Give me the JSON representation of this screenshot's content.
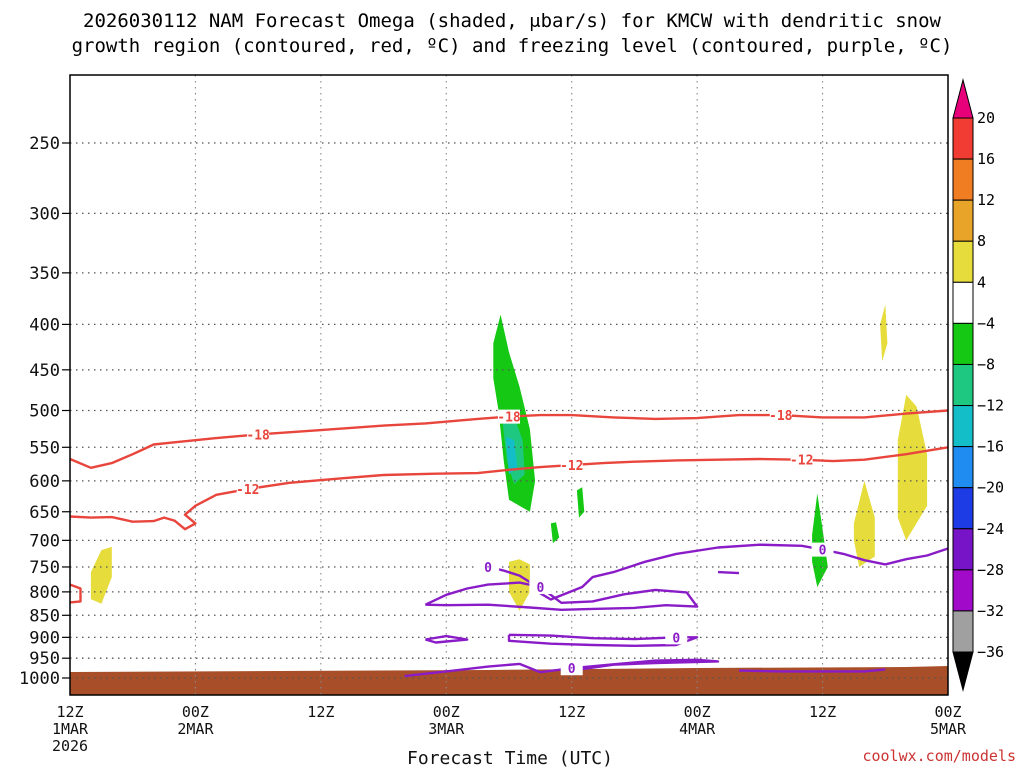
{
  "chart_data": {
    "type": "heatmap",
    "title_lines": [
      "2026030112 NAM Forecast Omega (shaded, μbar/s) for KMCW with dendritic snow",
      "growth region (contoured, red, ºC) and freezing level (contoured, purple, ºC)"
    ],
    "xlabel": "Forecast Time (UTC)",
    "ylabel": "",
    "x_ticks": [
      {
        "hour": 0,
        "lines": [
          "12Z",
          "1MAR",
          "2026"
        ]
      },
      {
        "hour": 12,
        "lines": [
          "00Z",
          "2MAR"
        ]
      },
      {
        "hour": 24,
        "lines": [
          "12Z"
        ]
      },
      {
        "hour": 36,
        "lines": [
          "00Z",
          "3MAR"
        ]
      },
      {
        "hour": 48,
        "lines": [
          "12Z"
        ]
      },
      {
        "hour": 60,
        "lines": [
          "00Z",
          "4MAR"
        ]
      },
      {
        "hour": 72,
        "lines": [
          "12Z"
        ]
      },
      {
        "hour": 84,
        "lines": [
          "00Z",
          "5MAR"
        ]
      }
    ],
    "x_range_hours": [
      0,
      84
    ],
    "y_ticks_hpa": [
      250,
      300,
      350,
      400,
      450,
      500,
      550,
      600,
      650,
      700,
      750,
      800,
      850,
      900,
      950,
      1000
    ],
    "y_range_hpa": [
      200,
      1050
    ],
    "grid": true,
    "colorbar": {
      "labels": [
        "20",
        "16",
        "12",
        "8",
        "4",
        "−4",
        "−8",
        "−12",
        "−16",
        "−20",
        "−24",
        "−28",
        "−32",
        "−36"
      ],
      "colors": [
        "#e8007a",
        "#f03c32",
        "#f07d22",
        "#e8a428",
        "#e6dc3c",
        "#ffffff",
        "#14c814",
        "#1ec880",
        "#14bec8",
        "#1e8cf0",
        "#1e3ce6",
        "#7814c8",
        "#a00ac8",
        "#a0a0a0",
        "#000000"
      ]
    },
    "red_contours": [
      {
        "label": "-18",
        "points": [
          [
            0,
            567
          ],
          [
            2,
            580
          ],
          [
            4,
            573
          ],
          [
            6,
            560
          ],
          [
            7,
            553
          ],
          [
            8,
            546
          ],
          [
            10,
            543
          ],
          [
            14,
            537
          ],
          [
            18,
            532
          ],
          [
            24,
            526
          ],
          [
            30,
            520
          ],
          [
            34,
            517
          ],
          [
            39,
            511
          ],
          [
            42,
            508
          ],
          [
            45,
            506
          ],
          [
            48,
            506
          ],
          [
            52,
            509
          ],
          [
            56,
            511
          ],
          [
            60,
            510
          ],
          [
            64,
            506
          ],
          [
            68,
            506
          ],
          [
            72,
            509
          ],
          [
            76,
            509
          ],
          [
            80,
            504
          ],
          [
            84,
            500
          ]
        ]
      },
      {
        "label": "-12",
        "points": [
          [
            0,
            658
          ],
          [
            2,
            660
          ],
          [
            4,
            659
          ],
          [
            6,
            667
          ],
          [
            8,
            666
          ],
          [
            9,
            660
          ],
          [
            10,
            665
          ],
          [
            11,
            680
          ],
          [
            12,
            670
          ],
          [
            11,
            655
          ],
          [
            12,
            640
          ],
          [
            14,
            622
          ],
          [
            17,
            613
          ],
          [
            21,
            603
          ],
          [
            26,
            596
          ],
          [
            30,
            591
          ],
          [
            35,
            589
          ],
          [
            39,
            588
          ],
          [
            42,
            583
          ],
          [
            45,
            579
          ],
          [
            48,
            576
          ],
          [
            51,
            573
          ],
          [
            54,
            571
          ],
          [
            58,
            569
          ],
          [
            62,
            568
          ],
          [
            66,
            567
          ],
          [
            70,
            568
          ],
          [
            73,
            570
          ],
          [
            76,
            568
          ],
          [
            80,
            560
          ],
          [
            84,
            550
          ]
        ]
      },
      {
        "label": "",
        "points": [
          [
            0,
            785
          ],
          [
            1,
            793
          ],
          [
            1,
            820
          ],
          [
            0,
            822
          ]
        ]
      }
    ],
    "purple_contours": [
      {
        "label": "0",
        "points": [
          [
            40,
            750
          ],
          [
            41.5,
            757
          ],
          [
            43,
            767
          ],
          [
            44,
            780
          ],
          [
            44.5,
            790
          ],
          [
            45,
            803
          ],
          [
            46,
            816
          ],
          [
            49,
            790
          ],
          [
            50,
            770
          ],
          [
            52,
            760
          ],
          [
            55,
            740
          ],
          [
            58,
            725
          ],
          [
            62,
            713
          ],
          [
            66,
            708
          ],
          [
            70,
            710
          ],
          [
            72,
            717
          ],
          [
            74,
            725
          ],
          [
            76,
            737
          ],
          [
            78,
            745
          ],
          [
            80,
            735
          ],
          [
            82,
            728
          ],
          [
            84,
            715
          ]
        ]
      },
      {
        "label": "0",
        "points": [
          [
            34,
            827
          ],
          [
            36,
            806
          ],
          [
            38,
            793
          ],
          [
            40,
            785
          ],
          [
            43,
            781
          ],
          [
            45,
            790
          ],
          [
            47,
            823
          ],
          [
            50,
            820
          ],
          [
            53,
            805
          ],
          [
            56,
            796
          ],
          [
            59,
            801
          ],
          [
            60,
            831
          ],
          [
            57,
            828
          ],
          [
            54,
            834
          ],
          [
            50,
            836
          ],
          [
            47,
            838
          ],
          [
            44,
            833
          ],
          [
            40,
            827
          ],
          [
            36,
            828
          ],
          [
            34,
            827
          ]
        ]
      },
      {
        "label": "0",
        "points": [
          [
            34,
            905
          ],
          [
            36,
            897
          ],
          [
            38,
            905
          ],
          [
            35,
            912
          ],
          [
            34,
            905
          ]
        ]
      },
      {
        "label": "0",
        "points": [
          [
            42,
            894
          ],
          [
            46,
            896
          ],
          [
            50,
            902
          ],
          [
            54,
            904
          ],
          [
            58,
            900
          ],
          [
            60,
            900
          ],
          [
            58,
            918
          ],
          [
            54,
            920
          ],
          [
            50,
            918
          ],
          [
            46,
            915
          ],
          [
            42,
            908
          ],
          [
            42,
            894
          ]
        ]
      },
      {
        "label": "0",
        "points": [
          [
            32,
            995
          ],
          [
            36,
            983
          ],
          [
            40,
            971
          ],
          [
            43,
            964
          ],
          [
            45,
            985
          ],
          [
            48,
            975
          ],
          [
            52,
            965
          ],
          [
            56,
            956
          ],
          [
            60,
            954
          ],
          [
            62,
            958
          ],
          [
            56,
            962
          ],
          [
            52,
            966
          ],
          [
            48,
            981
          ]
        ]
      },
      {
        "label": "",
        "points": [
          [
            62,
            760
          ],
          [
            64,
            762
          ]
        ]
      },
      {
        "label": "",
        "points": [
          [
            64,
            981
          ],
          [
            68,
            983
          ],
          [
            72,
            983
          ],
          [
            76,
            983
          ],
          [
            78,
            978
          ]
        ]
      }
    ],
    "omega_fills": [
      {
        "color": "#e6dc3c",
        "value_range": [
          4,
          8
        ],
        "points": [
          [
            2,
            760
          ],
          [
            3,
            718
          ],
          [
            4,
            712
          ],
          [
            4,
            770
          ],
          [
            3,
            825
          ],
          [
            2,
            815
          ],
          [
            2,
            760
          ]
        ]
      },
      {
        "color": "#e6dc3c",
        "value_range": [
          4,
          8
        ],
        "points": [
          [
            42,
            740
          ],
          [
            43,
            735
          ],
          [
            44,
            745
          ],
          [
            44,
            800
          ],
          [
            43,
            840
          ],
          [
            42,
            800
          ],
          [
            42,
            740
          ]
        ]
      },
      {
        "color": "#14c814",
        "value_range": [
          -8,
          -4
        ],
        "points": [
          [
            40.5,
            420
          ],
          [
            41.2,
            390
          ],
          [
            42,
            430
          ],
          [
            43,
            470
          ],
          [
            44,
            525
          ],
          [
            44.5,
            600
          ],
          [
            44,
            650
          ],
          [
            42,
            630
          ],
          [
            41.5,
            570
          ],
          [
            41,
            500
          ],
          [
            40.5,
            460
          ],
          [
            40.5,
            420
          ]
        ]
      },
      {
        "color": "#1ec880",
        "value_range": [
          -12,
          -8
        ],
        "points": [
          [
            41.3,
            505
          ],
          [
            42.3,
            500
          ],
          [
            43.3,
            540
          ],
          [
            43.5,
            590
          ],
          [
            42.5,
            605
          ],
          [
            41.8,
            570
          ],
          [
            41.3,
            505
          ]
        ]
      },
      {
        "color": "#14bec8",
        "value_range": [
          -16,
          -12
        ],
        "points": [
          [
            41.7,
            535
          ],
          [
            42.5,
            540
          ],
          [
            42.8,
            580
          ],
          [
            42,
            590
          ],
          [
            41.7,
            535
          ]
        ]
      },
      {
        "color": "#14c814",
        "value_range": [
          -8,
          -4
        ],
        "points": [
          [
            46,
            670
          ],
          [
            46.5,
            668
          ],
          [
            46.8,
            695
          ],
          [
            46.2,
            705
          ],
          [
            46,
            670
          ]
        ]
      },
      {
        "color": "#14c814",
        "value_range": [
          -8,
          -4
        ],
        "points": [
          [
            48.5,
            615
          ],
          [
            49,
            610
          ],
          [
            49.2,
            650
          ],
          [
            48.7,
            660
          ],
          [
            48.5,
            615
          ]
        ]
      },
      {
        "color": "#14c814",
        "value_range": [
          -8,
          -4
        ],
        "points": [
          [
            71,
            690
          ],
          [
            71.5,
            620
          ],
          [
            72,
            680
          ],
          [
            72.5,
            750
          ],
          [
            71.5,
            790
          ],
          [
            71,
            740
          ],
          [
            71,
            690
          ]
        ]
      },
      {
        "color": "#e6dc3c",
        "value_range": [
          4,
          8
        ],
        "points": [
          [
            75,
            670
          ],
          [
            76,
            600
          ],
          [
            77,
            660
          ],
          [
            77,
            730
          ],
          [
            75.5,
            750
          ],
          [
            75,
            700
          ],
          [
            75,
            670
          ]
        ]
      },
      {
        "color": "#e6dc3c",
        "value_range": [
          4,
          8
        ],
        "points": [
          [
            77.5,
            400
          ],
          [
            78,
            380
          ],
          [
            78.2,
            420
          ],
          [
            77.7,
            440
          ],
          [
            77.5,
            400
          ]
        ]
      },
      {
        "color": "#e6dc3c",
        "value_range": [
          4,
          8
        ],
        "points": [
          [
            79.2,
            540
          ],
          [
            80,
            480
          ],
          [
            81,
            495
          ],
          [
            82,
            560
          ],
          [
            82,
            640
          ],
          [
            80,
            700
          ],
          [
            79.2,
            660
          ],
          [
            79.2,
            540
          ]
        ]
      }
    ],
    "ground_color": "#a84e28"
  },
  "credit": "coolwx.com/models"
}
